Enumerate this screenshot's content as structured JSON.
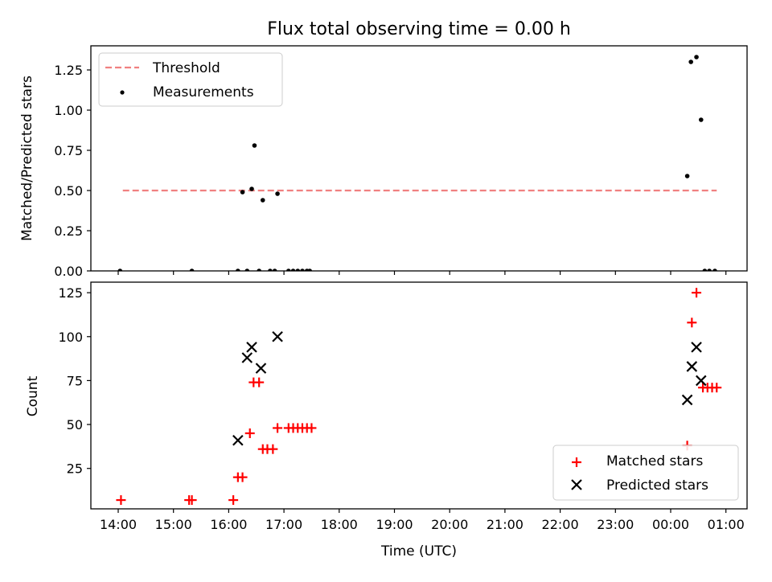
{
  "chart_data": [
    {
      "type": "scatter",
      "title": "Flux total observing time = 0.00 h",
      "xlabel": "",
      "ylabel": "Matched/Predicted stars",
      "ylim": [
        0,
        1.4
      ],
      "yticks": [
        "0.00",
        "0.25",
        "0.50",
        "0.75",
        "1.00",
        "1.25"
      ],
      "ytick_values": [
        0,
        0.25,
        0.5,
        0.75,
        1.0,
        1.25
      ],
      "legend_position": "top-left",
      "threshold": {
        "name": "Threshold",
        "value": 0.5,
        "x_start": "14:05",
        "x_end": "00:50",
        "color": "#f08080"
      },
      "series": [
        {
          "name": "Measurements",
          "color": "#000000",
          "marker": "dot",
          "points": [
            [
              "14:02",
              0.0
            ],
            [
              "15:20",
              0.0
            ],
            [
              "16:10",
              0.0
            ],
            [
              "16:15",
              0.49
            ],
            [
              "16:20",
              0.0
            ],
            [
              "16:25",
              0.51
            ],
            [
              "16:28",
              0.78
            ],
            [
              "16:33",
              0.0
            ],
            [
              "16:37",
              0.44
            ],
            [
              "16:45",
              0.0
            ],
            [
              "16:50",
              0.0
            ],
            [
              "16:53",
              0.48
            ],
            [
              "17:05",
              0.0
            ],
            [
              "17:10",
              0.0
            ],
            [
              "17:15",
              0.0
            ],
            [
              "17:20",
              0.0
            ],
            [
              "17:25",
              0.0
            ],
            [
              "17:28",
              0.0
            ],
            [
              "00:18",
              0.59
            ],
            [
              "00:22",
              1.3
            ],
            [
              "00:28",
              1.33
            ],
            [
              "00:33",
              0.94
            ],
            [
              "00:37",
              0.0
            ],
            [
              "00:42",
              0.0
            ],
            [
              "00:48",
              0.0
            ]
          ]
        }
      ]
    },
    {
      "type": "scatter",
      "title": "",
      "xlabel": "Time (UTC)",
      "ylabel": "Count",
      "ylim": [
        2,
        131
      ],
      "yticks": [
        "25",
        "50",
        "75",
        "100",
        "125"
      ],
      "ytick_values": [
        25,
        50,
        75,
        100,
        125
      ],
      "xticks": [
        "14:00",
        "15:00",
        "16:00",
        "17:00",
        "18:00",
        "19:00",
        "20:00",
        "21:00",
        "22:00",
        "23:00",
        "00:00",
        "01:00"
      ],
      "legend_position": "bottom-right",
      "series": [
        {
          "name": "Matched stars",
          "color": "#ff0000",
          "marker": "plus",
          "points": [
            [
              "14:03",
              7
            ],
            [
              "15:17",
              7
            ],
            [
              "15:20",
              7
            ],
            [
              "16:05",
              7
            ],
            [
              "16:10",
              20
            ],
            [
              "16:15",
              20
            ],
            [
              "16:23",
              45
            ],
            [
              "16:27",
              74
            ],
            [
              "16:33",
              74
            ],
            [
              "16:37",
              36
            ],
            [
              "16:42",
              36
            ],
            [
              "16:48",
              36
            ],
            [
              "16:53",
              48
            ],
            [
              "17:05",
              48
            ],
            [
              "17:10",
              48
            ],
            [
              "17:15",
              48
            ],
            [
              "17:20",
              48
            ],
            [
              "17:25",
              48
            ],
            [
              "17:30",
              48
            ],
            [
              "00:18",
              38
            ],
            [
              "00:23",
              108
            ],
            [
              "00:28",
              125
            ],
            [
              "00:35",
              71
            ],
            [
              "00:40",
              71
            ],
            [
              "00:45",
              71
            ],
            [
              "00:50",
              71
            ]
          ]
        },
        {
          "name": "Predicted stars",
          "color": "#000000",
          "marker": "x",
          "points": [
            [
              "16:10",
              41
            ],
            [
              "16:20",
              88
            ],
            [
              "16:25",
              94
            ],
            [
              "16:35",
              82
            ],
            [
              "16:53",
              100
            ],
            [
              "00:18",
              64
            ],
            [
              "00:23",
              83
            ],
            [
              "00:28",
              94
            ],
            [
              "00:33",
              75
            ]
          ]
        }
      ]
    }
  ]
}
